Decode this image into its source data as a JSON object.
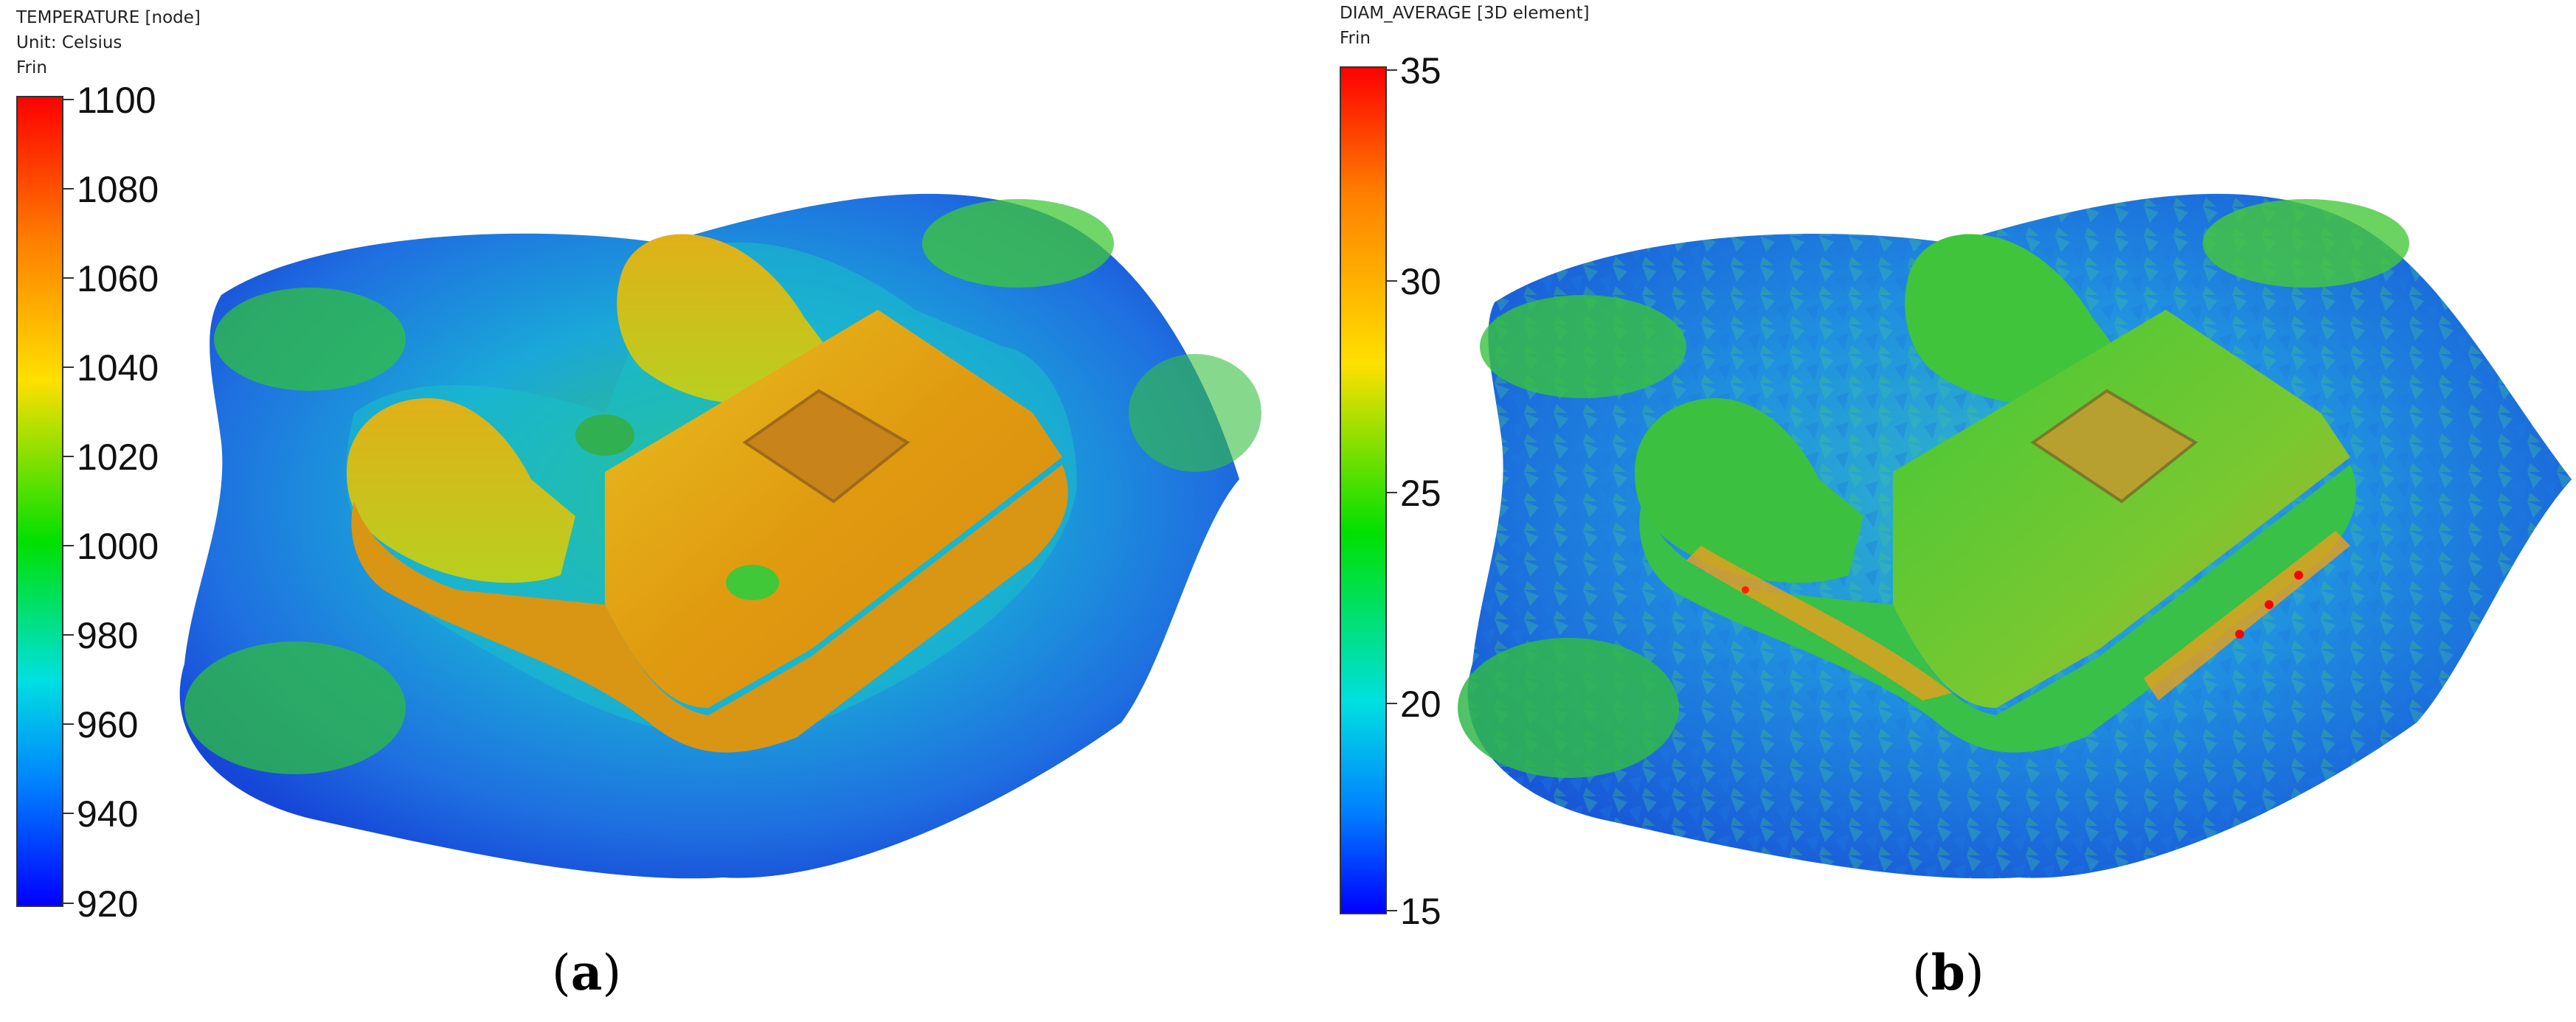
{
  "panel_a": {
    "legend_title": "TEMPERATURE [node]",
    "legend_unit": "Unit: Celsius",
    "legend_part": "Frin",
    "ticks": [
      "1100",
      "1080",
      "1060",
      "1040",
      "1020",
      "1000",
      "980",
      "960",
      "940",
      "920"
    ],
    "caption_open": "(",
    "caption_letter": "a",
    "caption_close": ")"
  },
  "panel_b": {
    "legend_title": "DIAM_AVERAGE [3D element]",
    "legend_part": "Frin",
    "ticks": [
      "35",
      "30",
      "25",
      "20",
      "15"
    ],
    "caption_open": "(",
    "caption_letter": "b",
    "caption_close": ")"
  },
  "colors": {
    "scale": [
      "#ff0000",
      "#ff8000",
      "#ffff00",
      "#00ff00",
      "#00ffff",
      "#0080ff",
      "#0000ff"
    ]
  }
}
